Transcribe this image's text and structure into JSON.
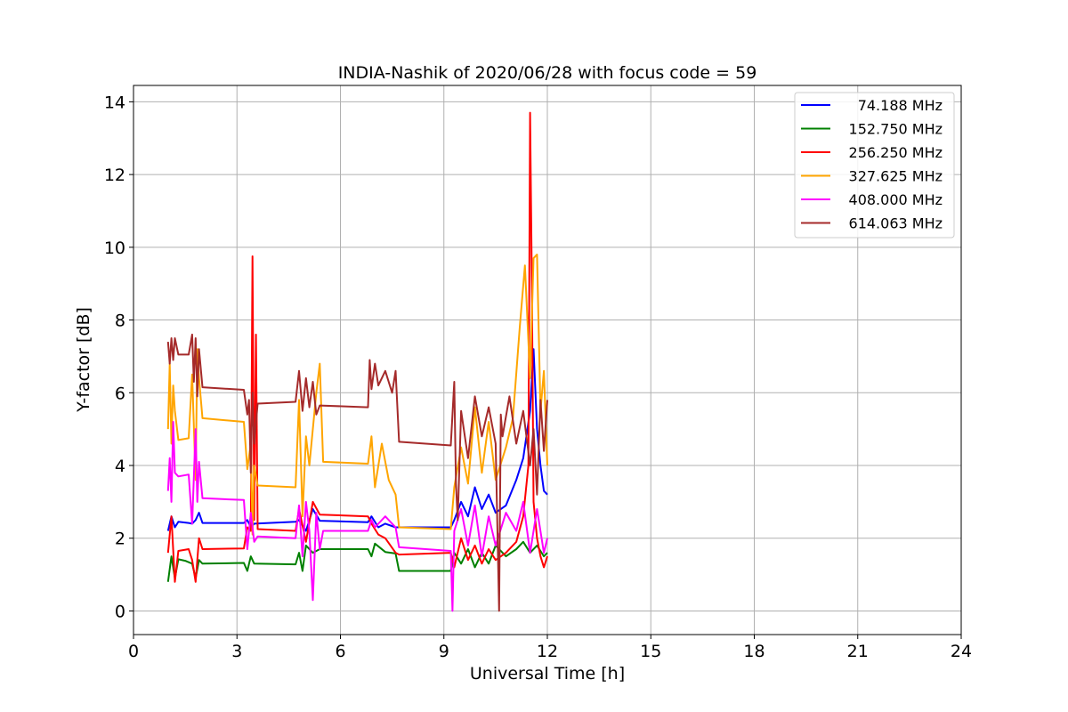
{
  "chart_data": {
    "type": "line",
    "title": "INDIA-Nashik of 2020/06/28 with focus code = 59",
    "xlabel": "Universal Time [h]",
    "ylabel": "Y-factor [dB]",
    "xlim": [
      0,
      24
    ],
    "ylim": [
      -0.65,
      14.45
    ],
    "xticks": [
      0,
      3,
      6,
      9,
      12,
      15,
      18,
      21,
      24
    ],
    "yticks": [
      0,
      2,
      4,
      6,
      8,
      10,
      12,
      14
    ],
    "grid": true,
    "legend_position": "top-right",
    "series": [
      {
        "name": "74.188 MHz",
        "color": "#0000ff",
        "x": [
          1.0,
          1.1,
          1.2,
          1.3,
          1.6,
          1.7,
          1.8,
          1.9,
          2.0,
          3.2,
          3.3,
          3.4,
          3.5,
          4.7,
          4.8,
          5.0,
          5.2,
          5.4,
          6.8,
          6.9,
          7.1,
          7.3,
          7.6,
          7.7,
          9.2,
          9.3,
          9.5,
          9.7,
          9.9,
          10.1,
          10.3,
          10.5,
          10.8,
          11.1,
          11.3,
          11.5,
          11.6,
          11.7,
          11.8,
          11.9,
          12.0
        ],
        "y": [
          2.2,
          2.6,
          2.3,
          2.45,
          2.42,
          2.4,
          2.5,
          2.7,
          2.42,
          2.42,
          2.5,
          2.3,
          2.4,
          2.45,
          2.5,
          2.2,
          2.8,
          2.48,
          2.44,
          2.6,
          2.3,
          2.4,
          2.3,
          2.3,
          2.3,
          2.5,
          3.0,
          2.6,
          3.4,
          2.8,
          3.2,
          2.7,
          2.9,
          3.6,
          4.2,
          5.5,
          7.2,
          5.0,
          4.0,
          3.3,
          3.2
        ]
      },
      {
        "name": "152.750 MHz",
        "color": "#008000",
        "x": [
          1.0,
          1.1,
          1.2,
          1.3,
          1.5,
          1.7,
          1.8,
          1.9,
          2.0,
          3.2,
          3.3,
          3.4,
          3.5,
          4.7,
          4.8,
          4.9,
          5.0,
          5.2,
          5.4,
          6.8,
          6.9,
          7.0,
          7.3,
          7.6,
          7.7,
          9.2,
          9.3,
          9.5,
          9.7,
          9.9,
          10.1,
          10.3,
          10.5,
          10.8,
          11.1,
          11.3,
          11.5,
          11.7,
          11.9,
          12.0
        ],
        "y": [
          0.8,
          1.5,
          0.9,
          1.42,
          1.38,
          1.3,
          0.9,
          1.4,
          1.3,
          1.32,
          1.1,
          1.5,
          1.3,
          1.28,
          1.6,
          1.1,
          1.8,
          1.6,
          1.7,
          1.7,
          1.5,
          1.85,
          1.62,
          1.58,
          1.1,
          1.1,
          1.6,
          1.3,
          1.7,
          1.2,
          1.6,
          1.3,
          1.8,
          1.5,
          1.7,
          1.9,
          1.6,
          1.8,
          1.5,
          1.6
        ]
      },
      {
        "name": "256.250 MHz",
        "color": "#ff0000",
        "x": [
          1.0,
          1.1,
          1.2,
          1.3,
          1.6,
          1.7,
          1.8,
          1.9,
          2.0,
          3.2,
          3.3,
          3.4,
          3.45,
          3.5,
          3.55,
          3.6,
          4.7,
          4.8,
          5.0,
          5.2,
          5.4,
          6.8,
          6.9,
          7.1,
          7.3,
          7.6,
          7.7,
          9.2,
          9.3,
          9.5,
          9.7,
          9.9,
          10.1,
          10.3,
          10.5,
          10.8,
          11.1,
          11.3,
          11.45,
          11.5,
          11.55,
          11.6,
          11.7,
          11.8,
          11.9,
          12.0
        ],
        "y": [
          1.6,
          2.6,
          0.8,
          1.65,
          1.7,
          1.4,
          0.8,
          2.0,
          1.7,
          1.72,
          2.3,
          2.2,
          9.75,
          2.5,
          7.6,
          2.25,
          2.2,
          2.8,
          1.9,
          3.0,
          2.65,
          2.6,
          2.4,
          2.1,
          2.0,
          1.6,
          1.55,
          1.6,
          1.2,
          2.0,
          1.4,
          1.8,
          1.3,
          1.7,
          1.4,
          1.6,
          1.9,
          2.6,
          4.0,
          13.7,
          9.0,
          3.0,
          2.0,
          1.5,
          1.2,
          1.5
        ]
      },
      {
        "name": "327.625 MHz",
        "color": "#ffa500",
        "x": [
          1.0,
          1.05,
          1.1,
          1.15,
          1.2,
          1.3,
          1.6,
          1.7,
          1.8,
          1.85,
          1.9,
          2.0,
          3.2,
          3.3,
          3.4,
          3.45,
          3.5,
          3.6,
          4.7,
          4.8,
          4.9,
          5.0,
          5.1,
          5.3,
          5.4,
          5.5,
          6.8,
          6.9,
          7.0,
          7.2,
          7.4,
          7.6,
          7.7,
          9.2,
          9.3,
          9.5,
          9.7,
          9.9,
          10.1,
          10.3,
          10.5,
          10.8,
          11.0,
          11.2,
          11.35,
          11.5,
          11.6,
          11.7,
          11.8,
          11.9,
          12.0
        ],
        "y": [
          5.0,
          6.8,
          4.6,
          6.2,
          5.5,
          4.7,
          4.75,
          6.5,
          3.6,
          7.2,
          6.4,
          5.3,
          5.2,
          3.9,
          4.6,
          2.1,
          4.0,
          3.45,
          3.4,
          5.8,
          2.6,
          4.8,
          4.0,
          6.0,
          6.8,
          4.1,
          4.05,
          4.8,
          3.4,
          4.6,
          3.6,
          3.2,
          2.3,
          2.25,
          3.4,
          4.5,
          3.5,
          5.6,
          3.8,
          5.2,
          3.6,
          4.5,
          5.3,
          7.8,
          9.5,
          6.4,
          9.7,
          9.8,
          5.5,
          6.6,
          4.0
        ]
      },
      {
        "name": "408.000 MHz",
        "color": "#ff00ff",
        "x": [
          1.0,
          1.05,
          1.1,
          1.15,
          1.2,
          1.3,
          1.6,
          1.7,
          1.8,
          1.85,
          1.9,
          2.0,
          3.2,
          3.3,
          3.4,
          3.5,
          3.6,
          4.7,
          4.8,
          4.9,
          5.0,
          5.1,
          5.2,
          5.3,
          5.4,
          5.5,
          6.8,
          6.9,
          7.0,
          7.3,
          7.6,
          7.7,
          9.2,
          9.25,
          9.3,
          9.5,
          9.7,
          9.9,
          10.1,
          10.3,
          10.5,
          10.8,
          11.1,
          11.3,
          11.5,
          11.7,
          11.9,
          12.0
        ],
        "y": [
          3.3,
          4.2,
          3.0,
          5.2,
          3.8,
          3.7,
          3.75,
          2.4,
          5.0,
          3.0,
          4.1,
          3.1,
          3.05,
          1.7,
          2.7,
          1.9,
          2.05,
          2.0,
          2.9,
          1.5,
          3.0,
          2.2,
          0.3,
          2.7,
          1.7,
          2.2,
          2.2,
          2.5,
          2.3,
          2.6,
          2.3,
          1.75,
          1.65,
          0.0,
          2.2,
          2.8,
          1.8,
          2.9,
          1.5,
          2.6,
          1.8,
          2.7,
          2.2,
          3.0,
          1.6,
          2.8,
          1.6,
          2.0
        ]
      },
      {
        "name": "614.063 MHz",
        "color": "#a52a2a",
        "x": [
          1.0,
          1.05,
          1.1,
          1.15,
          1.2,
          1.3,
          1.6,
          1.7,
          1.75,
          1.8,
          1.85,
          1.9,
          2.0,
          3.2,
          3.3,
          3.35,
          3.4,
          3.45,
          3.5,
          3.6,
          4.7,
          4.8,
          4.9,
          5.0,
          5.1,
          5.2,
          5.3,
          5.4,
          6.8,
          6.85,
          6.9,
          7.0,
          7.1,
          7.3,
          7.5,
          7.6,
          7.7,
          9.2,
          9.3,
          9.35,
          9.4,
          9.5,
          9.7,
          9.9,
          10.1,
          10.3,
          10.5,
          10.6,
          10.65,
          10.7,
          10.9,
          11.1,
          11.3,
          11.5,
          11.6,
          11.7,
          11.8,
          11.9,
          12.0
        ],
        "y": [
          7.4,
          6.8,
          7.5,
          6.9,
          7.5,
          7.05,
          7.05,
          7.6,
          6.3,
          7.5,
          5.9,
          7.2,
          6.15,
          6.08,
          5.4,
          5.8,
          3.8,
          6.0,
          4.6,
          5.7,
          5.75,
          6.6,
          5.5,
          6.4,
          5.6,
          6.3,
          5.4,
          5.65,
          5.6,
          6.9,
          6.1,
          6.8,
          6.2,
          6.6,
          6.0,
          6.6,
          4.65,
          4.55,
          6.3,
          3.5,
          2.5,
          5.5,
          4.2,
          5.9,
          4.8,
          5.6,
          4.6,
          0.0,
          5.4,
          4.8,
          5.9,
          4.6,
          5.5,
          4.0,
          5.0,
          3.2,
          5.8,
          4.4,
          5.8
        ]
      }
    ]
  }
}
